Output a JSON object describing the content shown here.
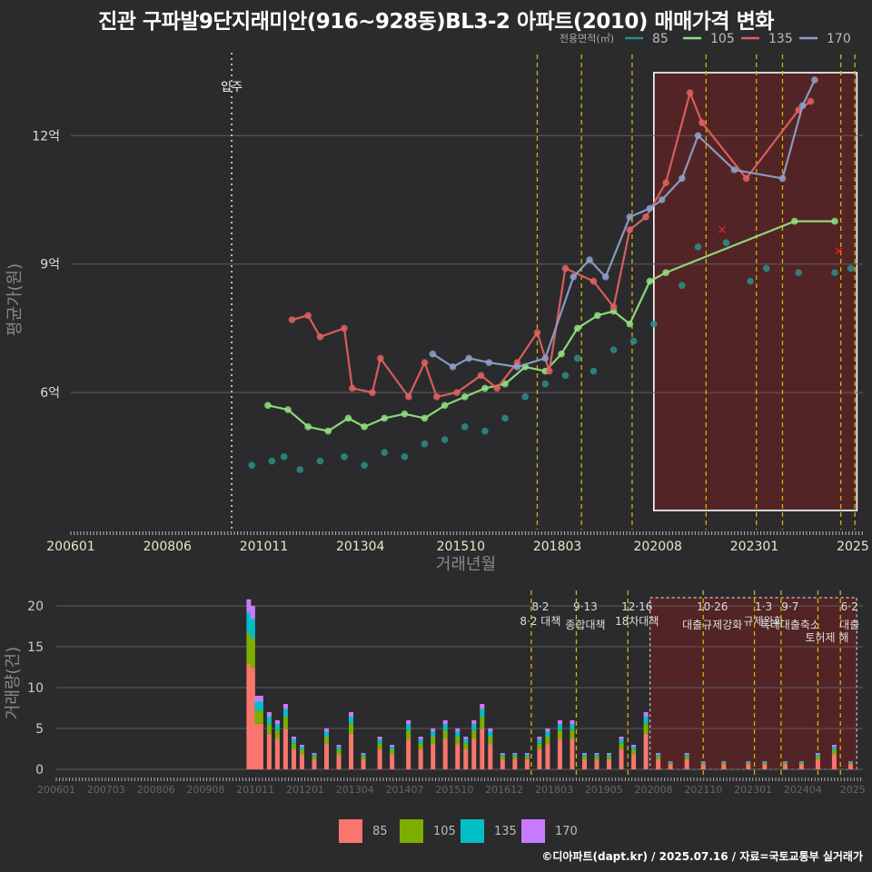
{
  "title": "진관 구파발9단지래미안(916~928동)BL3-2 아파트(2010) 매매가격 변화",
  "footer": "©디아파트(dapt.kr) / 2025.07.16 / 자료=국토교통부 실거래가",
  "chart_data": [
    {
      "type": "line",
      "title": "진관 구파발9단지래미안(916~928동)BL3-2 아파트(2010) 매매가격 변화",
      "xlabel": "거래년월",
      "ylabel": "평균가(원)",
      "x_ticks": [
        "200601",
        "200806",
        "201011",
        "201304",
        "201510",
        "201803",
        "202008",
        "202301",
        "2025"
      ],
      "y_ticks": [
        {
          "value": 6,
          "label": "6억"
        },
        {
          "value": 9,
          "label": "9억"
        },
        {
          "value": 12,
          "label": "12억"
        }
      ],
      "ylim": [
        2.8,
        14.0
      ],
      "legend_title": "전용면적(㎡)",
      "move_in": {
        "label": "입주",
        "year": 2010.0
      },
      "policy_lines": [
        2017.6,
        2018.7,
        2019.96,
        2021.8,
        2023.05,
        2023.7,
        2025.15,
        2025.5
      ],
      "highlight_range": [
        2020.5,
        2025.55
      ],
      "series": [
        {
          "name": "85",
          "color": "#2a8f8a",
          "points": [
            [
              2010.5,
              4.3
            ],
            [
              2011.0,
              4.4
            ],
            [
              2011.3,
              4.5
            ],
            [
              2011.7,
              4.2
            ],
            [
              2012.2,
              4.4
            ],
            [
              2012.8,
              4.5
            ],
            [
              2013.3,
              4.3
            ],
            [
              2013.8,
              4.6
            ],
            [
              2014.3,
              4.5
            ],
            [
              2014.8,
              4.8
            ],
            [
              2015.3,
              4.9
            ],
            [
              2015.8,
              5.2
            ],
            [
              2016.3,
              5.1
            ],
            [
              2016.8,
              5.4
            ],
            [
              2017.3,
              5.9
            ],
            [
              2017.8,
              6.2
            ],
            [
              2018.3,
              6.4
            ],
            [
              2018.6,
              6.8
            ],
            [
              2019.0,
              6.5
            ],
            [
              2019.5,
              7.0
            ],
            [
              2020.0,
              7.2
            ],
            [
              2020.5,
              7.6
            ],
            [
              2021.2,
              8.5
            ],
            [
              2021.6,
              9.4
            ],
            [
              2022.3,
              9.5
            ],
            [
              2022.9,
              8.6
            ],
            [
              2023.3,
              8.9
            ],
            [
              2024.1,
              8.8
            ],
            [
              2025.0,
              8.8
            ],
            [
              2025.4,
              8.9
            ]
          ]
        },
        {
          "name": "105",
          "color": "#90e080",
          "points": [
            [
              2010.9,
              5.7
            ],
            [
              2011.4,
              5.6
            ],
            [
              2011.9,
              5.2
            ],
            [
              2012.4,
              5.1
            ],
            [
              2012.9,
              5.4
            ],
            [
              2013.3,
              5.2
            ],
            [
              2013.8,
              5.4
            ],
            [
              2014.3,
              5.5
            ],
            [
              2014.8,
              5.4
            ],
            [
              2015.3,
              5.7
            ],
            [
              2015.8,
              5.9
            ],
            [
              2016.3,
              6.1
            ],
            [
              2016.8,
              6.2
            ],
            [
              2017.3,
              6.6
            ],
            [
              2017.8,
              6.5
            ],
            [
              2018.2,
              6.9
            ],
            [
              2018.6,
              7.5
            ],
            [
              2019.1,
              7.8
            ],
            [
              2019.5,
              7.9
            ],
            [
              2019.9,
              7.6
            ],
            [
              2020.4,
              8.6
            ],
            [
              2020.8,
              8.8
            ],
            [
              2024.0,
              10.0
            ],
            [
              2025.0,
              10.0
            ]
          ]
        },
        {
          "name": "135",
          "color": "#e06060",
          "points": [
            [
              2011.5,
              7.7
            ],
            [
              2011.9,
              7.8
            ],
            [
              2012.2,
              7.3
            ],
            [
              2012.8,
              7.5
            ],
            [
              2013.0,
              6.1
            ],
            [
              2013.5,
              6.0
            ],
            [
              2013.7,
              6.8
            ],
            [
              2014.4,
              5.9
            ],
            [
              2014.8,
              6.7
            ],
            [
              2015.1,
              5.9
            ],
            [
              2015.6,
              6.0
            ],
            [
              2016.2,
              6.4
            ],
            [
              2016.6,
              6.1
            ],
            [
              2017.1,
              6.7
            ],
            [
              2017.6,
              7.4
            ],
            [
              2017.9,
              6.5
            ],
            [
              2018.3,
              8.9
            ],
            [
              2019.0,
              8.6
            ],
            [
              2019.5,
              8.0
            ],
            [
              2019.9,
              9.8
            ],
            [
              2020.3,
              10.1
            ],
            [
              2020.8,
              10.9
            ],
            [
              2021.4,
              13.0
            ],
            [
              2021.7,
              12.3
            ],
            [
              2022.8,
              11.0
            ],
            [
              2024.1,
              12.6
            ],
            [
              2024.4,
              12.8
            ]
          ]
        },
        {
          "name": "170",
          "color": "#8ea0c8",
          "points": [
            [
              2015.0,
              6.9
            ],
            [
              2015.5,
              6.6
            ],
            [
              2015.9,
              6.8
            ],
            [
              2016.4,
              6.7
            ],
            [
              2017.1,
              6.6
            ],
            [
              2017.8,
              6.8
            ],
            [
              2018.5,
              8.7
            ],
            [
              2018.9,
              9.1
            ],
            [
              2019.3,
              8.7
            ],
            [
              2019.9,
              10.1
            ],
            [
              2020.4,
              10.3
            ],
            [
              2020.7,
              10.5
            ],
            [
              2021.2,
              11.0
            ],
            [
              2021.6,
              12.0
            ],
            [
              2022.5,
              11.2
            ],
            [
              2023.7,
              11.0
            ],
            [
              2024.2,
              12.7
            ],
            [
              2024.5,
              13.3
            ]
          ]
        }
      ],
      "markers": [
        {
          "label": "×",
          "x": 2022.2,
          "y": 9.8
        },
        {
          "label": "×",
          "x": 2025.1,
          "y": 9.3
        }
      ]
    },
    {
      "type": "bar",
      "xlabel": "",
      "ylabel": "거래량(건)",
      "x_ticks": [
        "200601",
        "200703",
        "200806",
        "200908",
        "201011",
        "201201",
        "201304",
        "201407",
        "201510",
        "201612",
        "201803",
        "201905",
        "202008",
        "202110",
        "202301",
        "202404",
        "2025"
      ],
      "y_ticks": [
        0,
        5,
        10,
        15,
        20
      ],
      "ylim": [
        0,
        21
      ],
      "legend": [
        "85",
        "105",
        "135",
        "170"
      ],
      "legend_colors": [
        "#f8766d",
        "#7cae00",
        "#00bfc4",
        "#c77cff"
      ],
      "policy_annotations": [
        {
          "date": "8·2",
          "label": "8·2 대책",
          "x": 2017.6
        },
        {
          "date": "9·13",
          "label": "종합대책",
          "x": 2018.7
        },
        {
          "date": "12·16",
          "label": "18차대책",
          "x": 2019.96
        },
        {
          "date": "10·26",
          "label": "대출규제강화",
          "x": 2021.8
        },
        {
          "date": "1·3",
          "label": "규제완화",
          "x": 2023.05
        },
        {
          "date": "9·7",
          "label": "특례대출축소",
          "x": 2023.7
        },
        {
          "date": "",
          "label": "토허제 해",
          "x": 2024.6
        },
        {
          "date": "6·2",
          "label": "대출",
          "x": 2025.15
        }
      ],
      "monthly_volumes": [
        [
          2010.7,
          20.8
        ],
        [
          2010.8,
          20
        ],
        [
          2010.9,
          9
        ],
        [
          2011.0,
          9
        ],
        [
          2011.2,
          7
        ],
        [
          2011.4,
          6
        ],
        [
          2011.6,
          8
        ],
        [
          2011.8,
          4
        ],
        [
          2012.0,
          3
        ],
        [
          2012.3,
          2
        ],
        [
          2012.6,
          5
        ],
        [
          2012.9,
          3
        ],
        [
          2013.2,
          7
        ],
        [
          2013.5,
          2
        ],
        [
          2013.9,
          4
        ],
        [
          2014.2,
          3
        ],
        [
          2014.6,
          6
        ],
        [
          2014.9,
          4
        ],
        [
          2015.2,
          5
        ],
        [
          2015.5,
          6
        ],
        [
          2015.8,
          5
        ],
        [
          2016.0,
          4
        ],
        [
          2016.2,
          6
        ],
        [
          2016.4,
          8
        ],
        [
          2016.6,
          5
        ],
        [
          2016.9,
          2
        ],
        [
          2017.2,
          2
        ],
        [
          2017.5,
          2
        ],
        [
          2017.8,
          4
        ],
        [
          2018.0,
          5
        ],
        [
          2018.3,
          6
        ],
        [
          2018.6,
          6
        ],
        [
          2018.9,
          2
        ],
        [
          2019.2,
          2
        ],
        [
          2019.5,
          2
        ],
        [
          2019.8,
          4
        ],
        [
          2020.1,
          3
        ],
        [
          2020.4,
          7
        ],
        [
          2020.7,
          2
        ],
        [
          2021.0,
          1
        ],
        [
          2021.4,
          2
        ],
        [
          2021.8,
          1
        ],
        [
          2022.3,
          1
        ],
        [
          2022.9,
          1
        ],
        [
          2023.3,
          1
        ],
        [
          2023.8,
          1
        ],
        [
          2024.2,
          1
        ],
        [
          2024.6,
          2
        ],
        [
          2025.0,
          3
        ],
        [
          2025.4,
          1
        ]
      ]
    }
  ]
}
